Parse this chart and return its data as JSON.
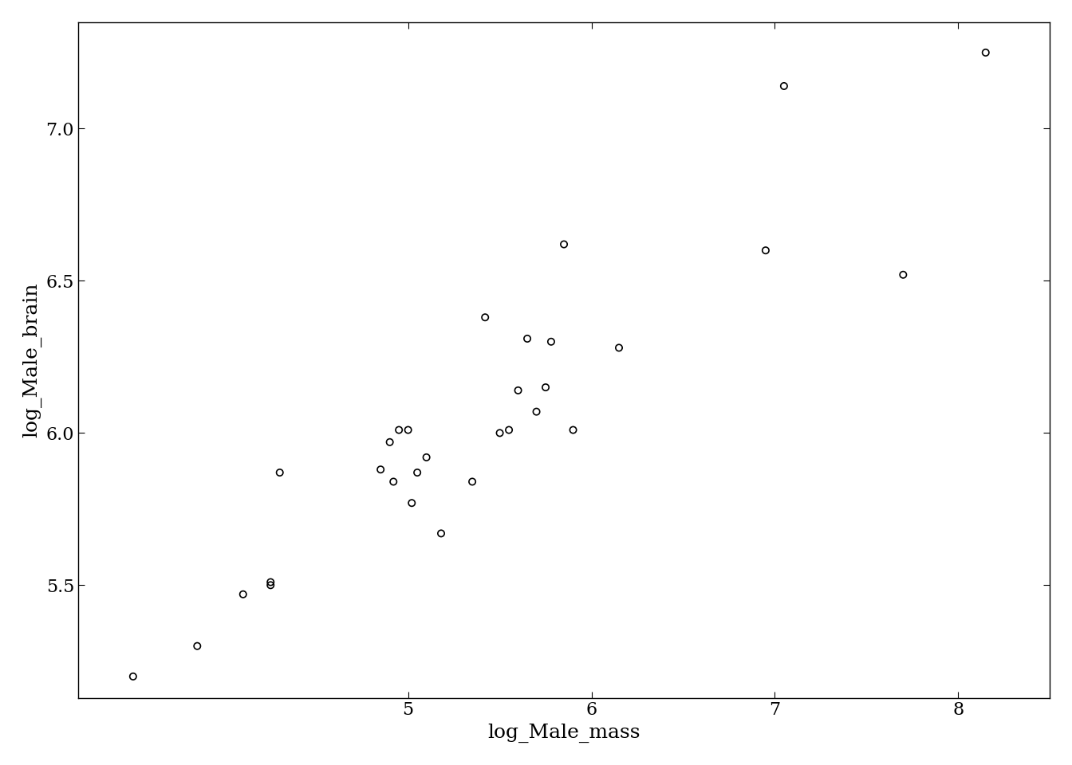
{
  "x": [
    3.5,
    3.85,
    4.1,
    4.25,
    4.25,
    4.3,
    4.85,
    4.9,
    4.92,
    4.95,
    5.0,
    5.02,
    5.05,
    5.1,
    5.18,
    5.35,
    5.42,
    5.5,
    5.55,
    5.6,
    5.65,
    5.7,
    5.75,
    5.78,
    5.85,
    5.9,
    6.15,
    6.95,
    7.05,
    7.7,
    8.15
  ],
  "y": [
    5.2,
    5.3,
    5.47,
    5.5,
    5.51,
    5.87,
    5.88,
    5.97,
    5.84,
    6.01,
    6.01,
    5.77,
    5.87,
    5.92,
    5.67,
    5.84,
    6.38,
    6.0,
    6.01,
    6.14,
    6.31,
    6.07,
    6.15,
    6.3,
    6.62,
    6.01,
    6.28,
    6.6,
    7.14,
    6.52,
    7.25
  ],
  "xlabel": "log_Male_mass",
  "ylabel": "log_Male_brain",
  "xlim": [
    3.2,
    8.5
  ],
  "ylim": [
    5.13,
    7.35
  ],
  "xticks": [
    5,
    6,
    7,
    8
  ],
  "yticks": [
    5.5,
    6.0,
    6.5,
    7.0
  ],
  "marker_size": 6,
  "marker_color": "none",
  "marker_edge_color": "#000000",
  "background_color": "#ffffff",
  "axes_color": "#000000",
  "font_size": 18,
  "tick_labelsize": 16
}
